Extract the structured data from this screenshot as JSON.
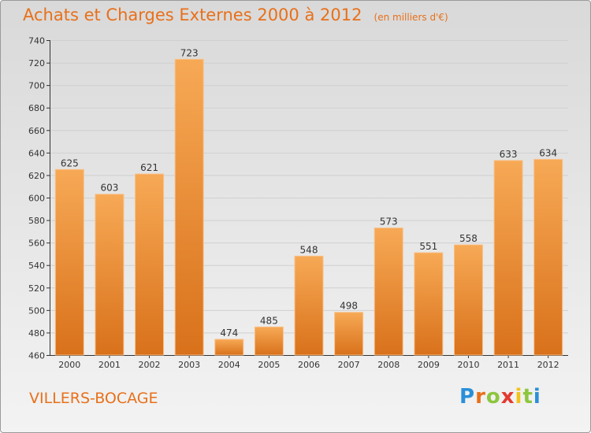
{
  "title": "Achats et Charges Externes 2000 à 2012",
  "subtitle": "(en milliers d'€)",
  "city": "VILLERS-BOCAGE",
  "logo": {
    "letters": [
      "P",
      "r",
      "o",
      "x",
      "i",
      "t",
      "i"
    ],
    "colors": [
      "#2a8fd8",
      "#e8701a",
      "#8dc63f",
      "#e23a2f",
      "#f2c21b",
      "#8dc63f",
      "#2a8fd8"
    ]
  },
  "colors": {
    "bar_light": "#f7a955",
    "bar_dark": "#d9711b",
    "bar_stroke": "#f9c089",
    "accent": "#e8701a",
    "grid": "#d0d0d0",
    "axis": "#333333"
  },
  "chart_data": {
    "type": "bar",
    "categories": [
      "2000",
      "2001",
      "2002",
      "2003",
      "2004",
      "2005",
      "2006",
      "2007",
      "2008",
      "2009",
      "2010",
      "2011",
      "2012"
    ],
    "values": [
      625,
      603,
      621,
      723,
      474,
      485,
      548,
      498,
      573,
      551,
      558,
      633,
      634
    ],
    "ylim": [
      460,
      740
    ],
    "yticks": [
      460,
      480,
      500,
      520,
      540,
      560,
      580,
      600,
      620,
      640,
      660,
      680,
      700,
      720,
      740
    ],
    "grid": true,
    "data_labels": true,
    "xlabel": "",
    "ylabel": ""
  }
}
